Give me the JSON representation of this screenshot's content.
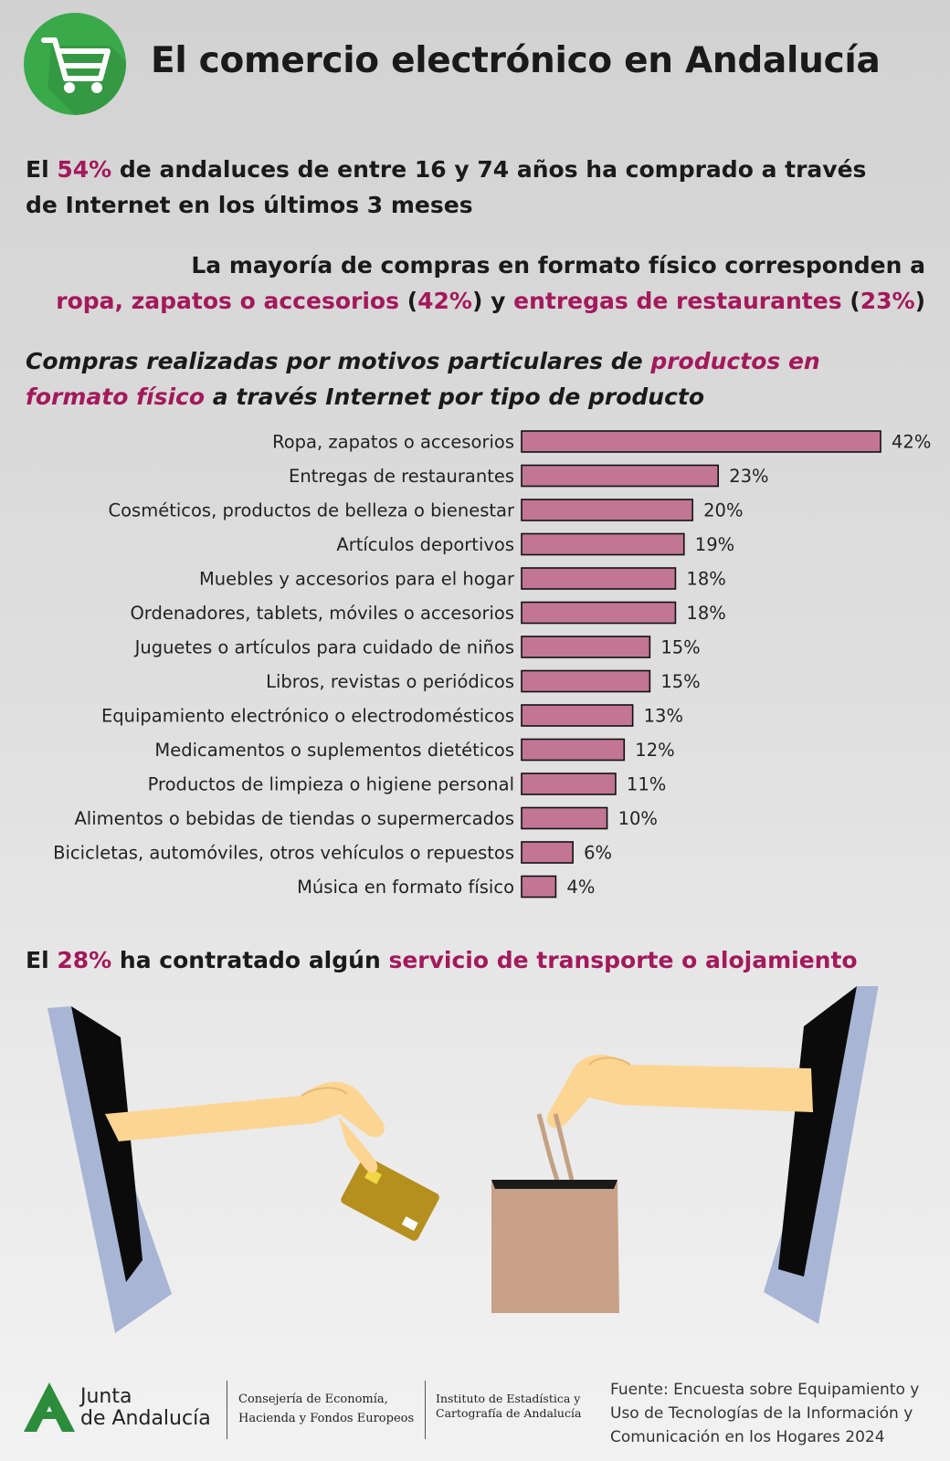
{
  "header": {
    "title": "El comercio electrónico en Andalucía",
    "icon": "shopping-cart-icon",
    "icon_bg_color": "#3aa94a"
  },
  "stat1": {
    "pre": "El ",
    "value": "54%",
    "post": " de andaluces de entre 16 y 74 años ha comprado a través de Internet en los últimos 3 meses"
  },
  "stat2": {
    "line1": "La mayoría de compras en formato físico corresponden a",
    "item1": "ropa, zapatos o accesorios",
    "open1": " (",
    "value1": "42%",
    "close1": ") y ",
    "item2": "entregas de restaurantes",
    "open2": " (",
    "value2": "23%",
    "close2": ")"
  },
  "chart_heading": {
    "pre": "Compras realizadas por motivos particulares de ",
    "highlight": "productos en formato físico",
    "post": " a través Internet por tipo de producto"
  },
  "chart_data": {
    "type": "bar",
    "orientation": "horizontal",
    "categories": [
      "Ropa, zapatos o accesorios",
      "Entregas de restaurantes",
      "Cosméticos, productos de belleza o bienestar",
      "Artículos deportivos",
      "Muebles y accesorios para el hogar",
      "Ordenadores, tablets, móviles o accesorios",
      "Juguetes o artículos para cuidado de niños",
      "Libros, revistas o periódicos",
      "Equipamiento electrónico o electrodomésticos",
      "Medicamentos o suplementos dietéticos",
      "Productos de limpieza o higiene personal",
      "Alimentos o bebidas de tiendas o supermercados",
      "Bicicletas, automóviles, otros vehículos o repuestos",
      "Música en formato físico"
    ],
    "values": [
      42,
      23,
      20,
      19,
      18,
      18,
      15,
      15,
      13,
      12,
      11,
      10,
      6,
      4
    ],
    "value_labels": [
      "42%",
      "23%",
      "20%",
      "19%",
      "18%",
      "18%",
      "15%",
      "15%",
      "13%",
      "12%",
      "11%",
      "10%",
      "6%",
      "4%"
    ],
    "unit": "%",
    "xlim": [
      0,
      42
    ],
    "bar_color": "#c27694",
    "grid": false,
    "legend": "none"
  },
  "stat3": {
    "pre": "El ",
    "value": "28%",
    "mid": " ha contratado algún ",
    "highlight": "servicio de transporte o alojamiento"
  },
  "illustration": {
    "left": "hand-with-credit-card-from-screen-illustration",
    "right": "hand-with-shopping-bag-from-screen-illustration"
  },
  "footer": {
    "logo_line1": "Junta",
    "logo_line2": "de Andalucía",
    "consejeria_line1": "Consejería de Economía,",
    "consejeria_line2": "Hacienda y Fondos Europeos",
    "instituto_line1": "Instituto de Estadística y",
    "instituto_line2": "Cartografía de Andalucía",
    "fuente": "Fuente: Encuesta sobre Equipamiento y Uso de Tecnologías de la Información y Comunicación en los Hogares 2024"
  },
  "colors": {
    "highlight": "#a3195b",
    "bar": "#c27694",
    "logo_green": "#3aa94a"
  }
}
